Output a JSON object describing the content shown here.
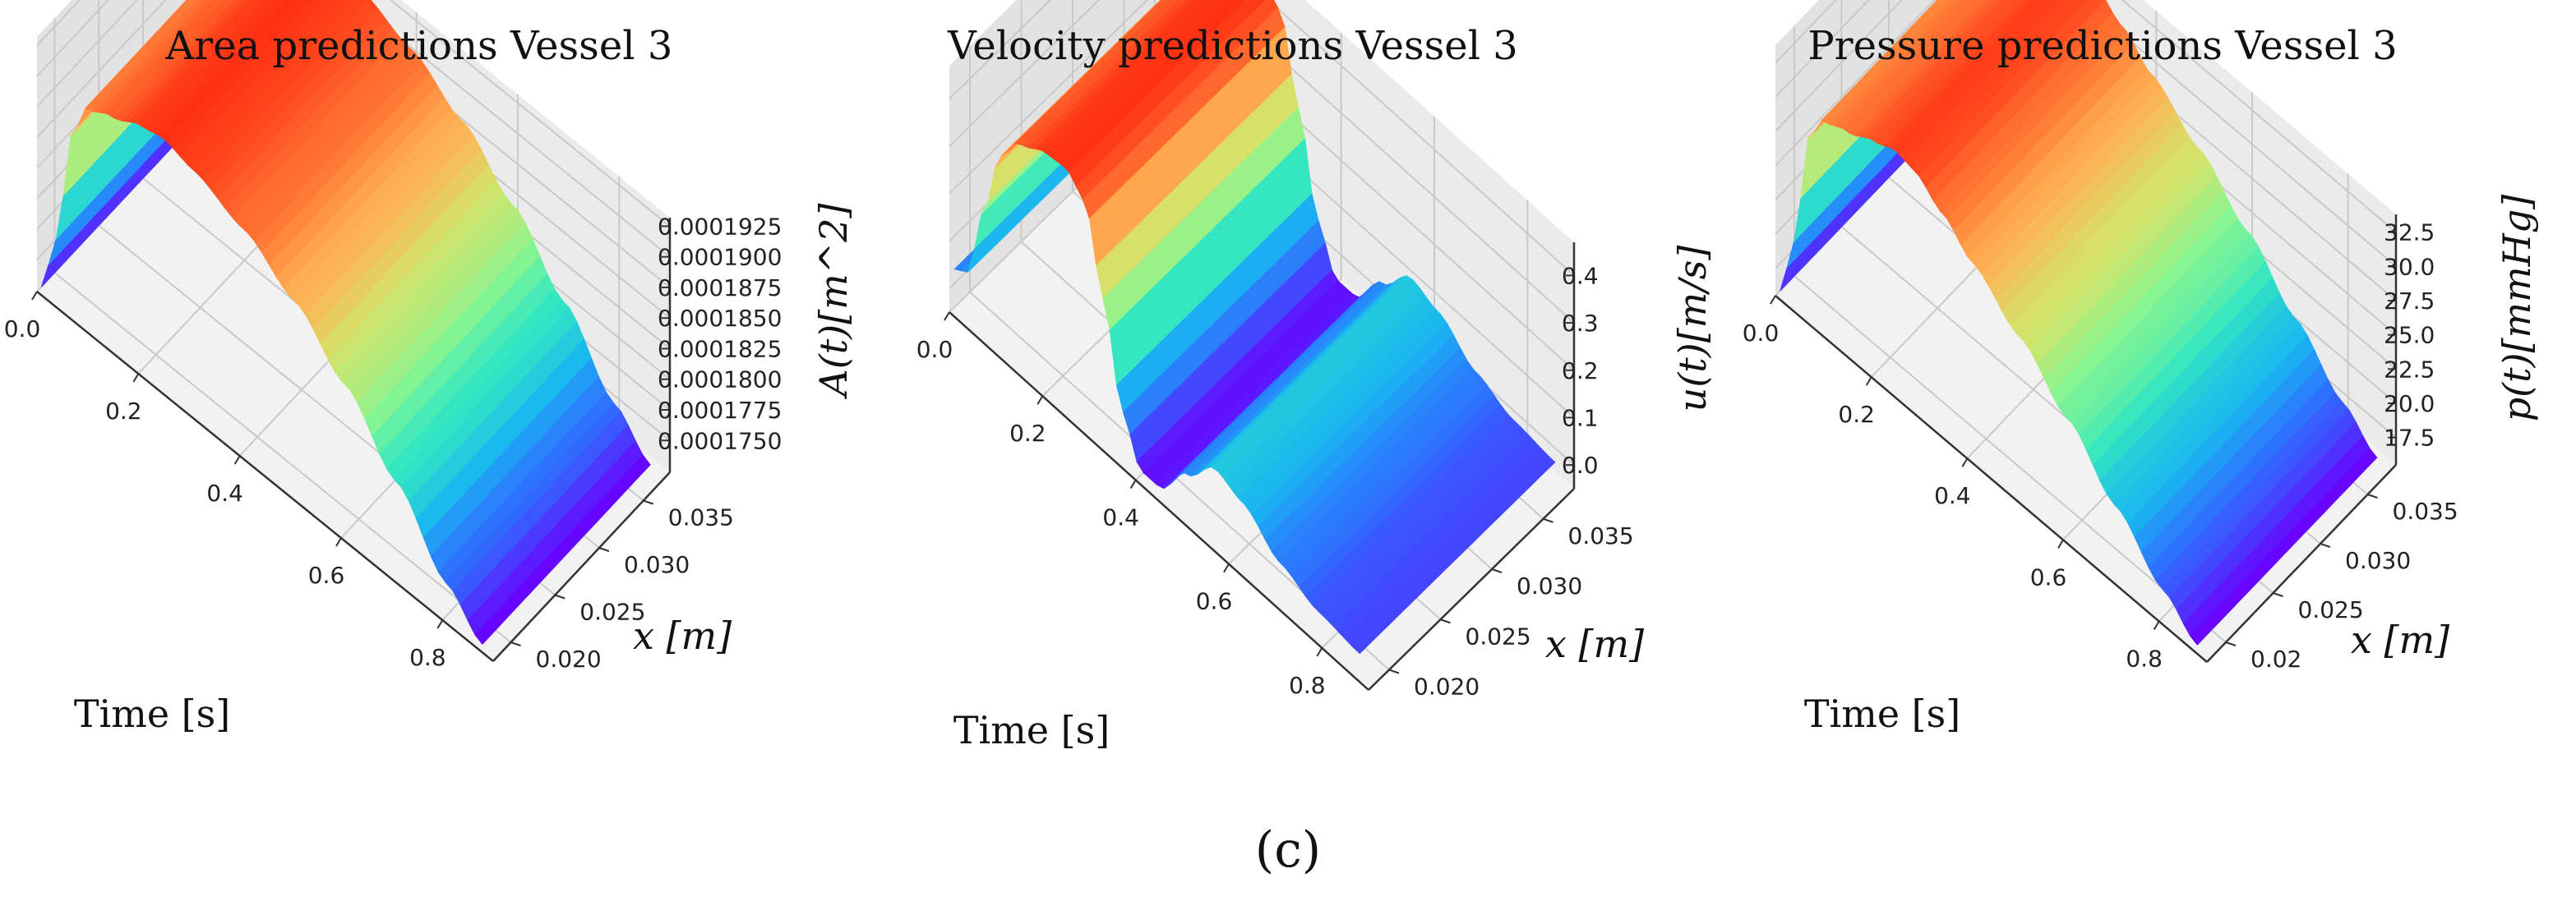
{
  "figure": {
    "caption": "(c)"
  },
  "colormap": [
    "#6a00ff",
    "#2f6dff",
    "#1ab7f0",
    "#35e7c1",
    "#8af590",
    "#d4e36b",
    "#ffb253",
    "#ff6a2e",
    "#ff1e0a"
  ],
  "chart_data": [
    {
      "type": "surface3d",
      "title": "Area predictions Vessel 3",
      "xlabel": "Time [s]",
      "ylabel": "x [m]",
      "zlabel": "A(t)[m^2]",
      "x_ticks": [
        "0.0",
        "0.2",
        "0.4",
        "0.6",
        "0.8"
      ],
      "y_ticks": [
        "0.020",
        "0.025",
        "0.030",
        "0.035"
      ],
      "z_ticks": [
        "0.0001750",
        "0.0001775",
        "0.0001800",
        "0.0001825",
        "0.0001850",
        "0.0001875",
        "0.0001900",
        "0.0001925"
      ],
      "xlim": [
        0.0,
        0.9
      ],
      "ylim": [
        0.018,
        0.038
      ],
      "zlim": [
        0.0001724,
        0.0001932
      ],
      "time_profile": [
        [
          0.0,
          0.0001724
        ],
        [
          0.03,
          0.0001773
        ],
        [
          0.06,
          0.0001868
        ],
        [
          0.09,
          0.00019
        ],
        [
          0.14,
          0.000191
        ],
        [
          0.2,
          0.0001922
        ],
        [
          0.24,
          0.0001926
        ],
        [
          0.3,
          0.000192
        ],
        [
          0.4,
          0.0001905
        ],
        [
          0.5,
          0.000188
        ],
        [
          0.6,
          0.0001845
        ],
        [
          0.7,
          0.00018
        ],
        [
          0.8,
          0.000175
        ],
        [
          0.87,
          0.0001724
        ]
      ]
    },
    {
      "type": "surface3d",
      "title": "Velocity predictions Vessel 3",
      "xlabel": "Time [s]",
      "ylabel": "x [m]",
      "zlabel": "u(t)[m/s]",
      "x_ticks": [
        "0.0",
        "0.2",
        "0.4",
        "0.6",
        "0.8"
      ],
      "y_ticks": [
        "0.020",
        "0.025",
        "0.030",
        "0.035"
      ],
      "z_ticks": [
        "0.0",
        "0.1",
        "0.2",
        "0.3",
        "0.4"
      ],
      "xlim": [
        0.0,
        0.9
      ],
      "ylim": [
        0.018,
        0.038
      ],
      "zlim": [
        -0.05,
        0.47
      ],
      "time_profile": [
        [
          0.0,
          0.03
        ],
        [
          0.03,
          0.05
        ],
        [
          0.06,
          0.2
        ],
        [
          0.1,
          0.36
        ],
        [
          0.14,
          0.42
        ],
        [
          0.2,
          0.45
        ],
        [
          0.24,
          0.455
        ],
        [
          0.28,
          0.42
        ],
        [
          0.32,
          0.25
        ],
        [
          0.36,
          0.05
        ],
        [
          0.4,
          -0.04
        ],
        [
          0.44,
          -0.04
        ],
        [
          0.5,
          0.04
        ],
        [
          0.56,
          0.105
        ],
        [
          0.62,
          0.085
        ],
        [
          0.7,
          0.03
        ],
        [
          0.78,
          0.0
        ],
        [
          0.87,
          -0.01
        ]
      ]
    },
    {
      "type": "surface3d",
      "title": "Pressure predictions Vessel 3",
      "xlabel": "Time [s]",
      "ylabel": "x [m]",
      "zlabel": "p(t)[mmHg]",
      "x_ticks": [
        "0.0",
        "0.2",
        "0.4",
        "0.6",
        "0.8"
      ],
      "y_ticks": [
        "0.02",
        "0.025",
        "0.030",
        "0.035"
      ],
      "z_ticks": [
        "17.5",
        "20.0",
        "22.5",
        "25.0",
        "27.5",
        "30.0",
        "32.5"
      ],
      "xlim": [
        0.0,
        0.9
      ],
      "ylim": [
        0.018,
        0.038
      ],
      "zlim": [
        15.5,
        33.8
      ],
      "time_profile": [
        [
          0.0,
          15.5
        ],
        [
          0.03,
          20.0
        ],
        [
          0.06,
          28.5
        ],
        [
          0.09,
          30.6
        ],
        [
          0.14,
          31.3
        ],
        [
          0.2,
          32.3
        ],
        [
          0.24,
          32.9
        ],
        [
          0.28,
          32.6
        ],
        [
          0.34,
          31.2
        ],
        [
          0.4,
          29.5
        ],
        [
          0.5,
          27.0
        ],
        [
          0.6,
          24.0
        ],
        [
          0.7,
          20.6
        ],
        [
          0.8,
          17.4
        ],
        [
          0.87,
          15.5
        ]
      ]
    }
  ]
}
